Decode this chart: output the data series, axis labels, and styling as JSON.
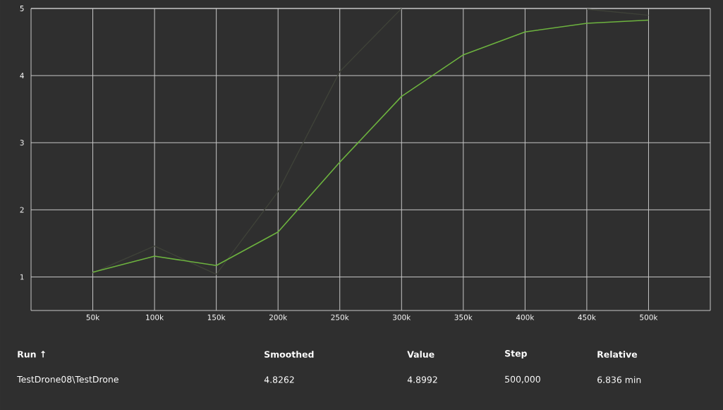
{
  "chart_data": {
    "type": "line",
    "x": [
      50000,
      100000,
      150000,
      200000,
      250000,
      300000,
      350000,
      400000,
      450000,
      500000
    ],
    "series": [
      {
        "color": "#3f4239",
        "values": [
          1.06,
          1.46,
          1.04,
          2.27,
          4.06,
          5.0,
          null,
          null,
          4.99,
          4.8992
        ]
      },
      {
        "color": "#6db33f",
        "values": [
          1.07,
          1.31,
          1.17,
          1.67,
          2.71,
          3.69,
          4.31,
          4.65,
          4.78,
          4.8262
        ]
      }
    ],
    "xlim": [
      0,
      550000
    ],
    "ylim": [
      0.5,
      5
    ],
    "xticks": [
      {
        "value": 50000,
        "label": "50k"
      },
      {
        "value": 100000,
        "label": "100k"
      },
      {
        "value": 150000,
        "label": "150k"
      },
      {
        "value": 200000,
        "label": "200k"
      },
      {
        "value": 250000,
        "label": "250k"
      },
      {
        "value": 300000,
        "label": "300k"
      },
      {
        "value": 350000,
        "label": "350k"
      },
      {
        "value": 400000,
        "label": "400k"
      },
      {
        "value": 450000,
        "label": "450k"
      },
      {
        "value": 500000,
        "label": "500k"
      }
    ],
    "yticks": [
      1,
      2,
      3,
      4,
      5
    ],
    "grid": true,
    "marker": "none",
    "annotations": [
      "Run ↑",
      "Smoothed",
      "Value",
      "Step",
      "Relative",
      "TestDrone08\\TestDrone",
      "4.8262",
      "4.8992",
      "500,000",
      "6.836 min"
    ]
  }
}
